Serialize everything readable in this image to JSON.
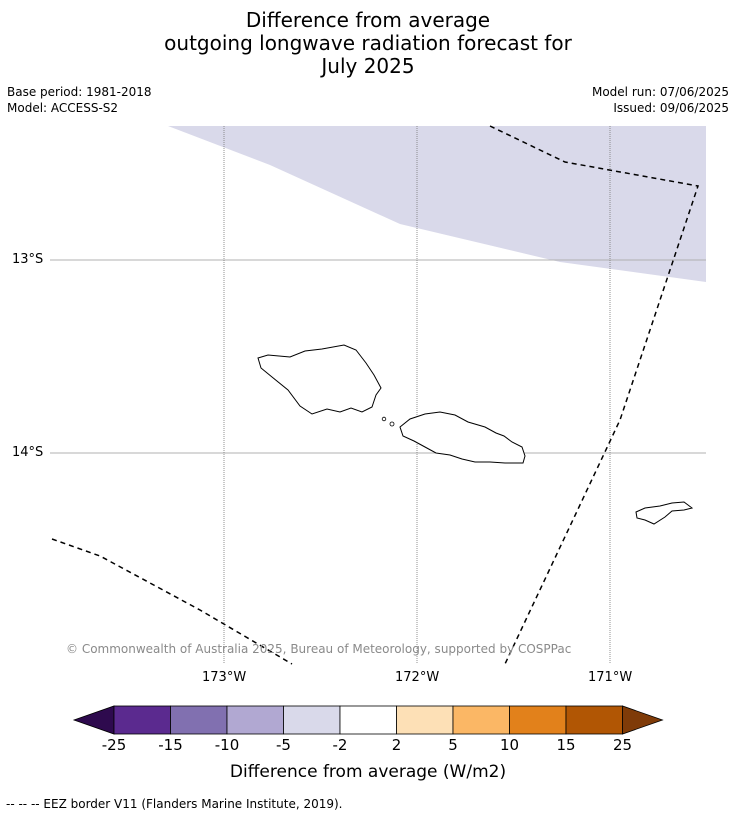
{
  "header": {
    "title_line1": "Difference from average",
    "title_line2": "outgoing longwave radiation forecast for",
    "title_line3": "July 2025",
    "base_period": "Base period: 1981-2018",
    "model": "Model: ACCESS-S2",
    "model_run": "Model run: 07/06/2025",
    "issued": "Issued: 09/06/2025"
  },
  "map": {
    "lat_labels": [
      "13°S",
      "14°S"
    ],
    "lon_labels": [
      "173°W",
      "172°W",
      "171°W"
    ],
    "copyright": "© Commonwealth of Australia 2025, Bureau of Meteorology, supported by COSPPac",
    "shading_color": "#d9d9ea",
    "shading_category": "-5 to -2"
  },
  "colorbar": {
    "title": "Difference from average (W/m2)",
    "ticks": [
      "-25",
      "-15",
      "-10",
      "-5",
      "-2",
      "2",
      "5",
      "10",
      "15",
      "25"
    ],
    "colors": [
      "#5b2a8f",
      "#8170b0",
      "#b1a8d2",
      "#d9d9ea",
      "#ffffff",
      "#fde0b6",
      "#fbb765",
      "#e2811b",
      "#b15604"
    ],
    "under_color": "#2e0a4e",
    "over_color": "#7f3b08"
  },
  "footer": {
    "eez_note": "--  --  -- EEZ border V11 (Flanders Marine Institute, 2019)."
  }
}
